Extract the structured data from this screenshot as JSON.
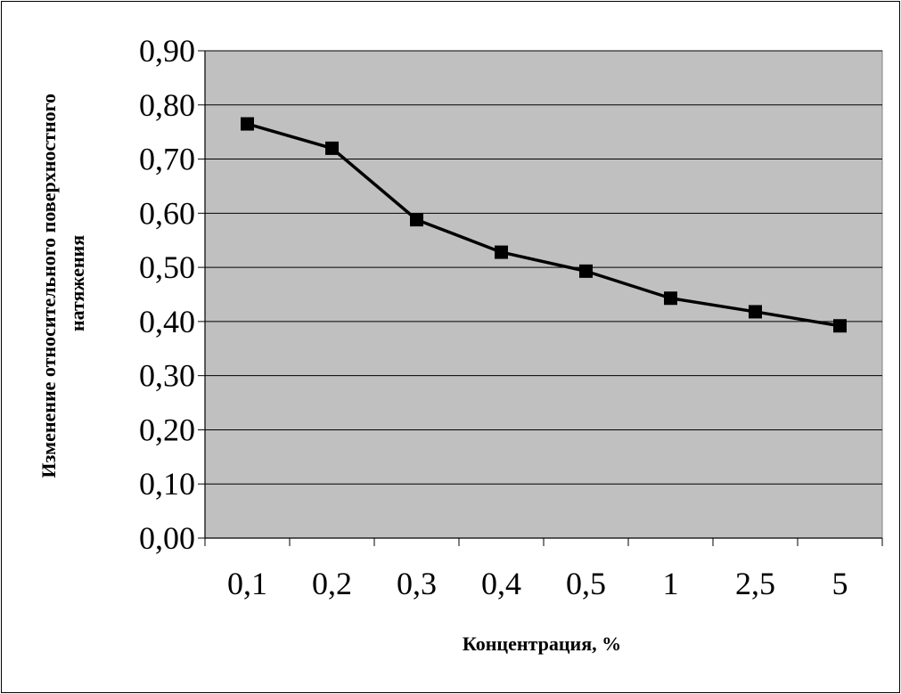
{
  "chart_data": {
    "type": "line",
    "title": "",
    "xlabel": "Концентрация, %",
    "ylabel_lines": [
      "Изменение относительного поверхностного",
      "натяжения"
    ],
    "categories": [
      "0,1",
      "0,2",
      "0,3",
      "0,4",
      "0,5",
      "1",
      "2,5",
      "5"
    ],
    "series": [
      {
        "values": [
          0.765,
          0.72,
          0.588,
          0.528,
          0.493,
          0.443,
          0.418,
          0.392
        ]
      }
    ],
    "ylim": [
      0,
      0.9
    ],
    "yticks": [
      0,
      0.1,
      0.2,
      0.3,
      0.4,
      0.5,
      0.6,
      0.7,
      0.8,
      0.9
    ],
    "ytick_labels": [
      "0,00",
      "0,10",
      "0,20",
      "0,30",
      "0,40",
      "0,50",
      "0,60",
      "0,70",
      "0,80",
      "0,90"
    ],
    "grid": true,
    "legend": "none",
    "colors": {
      "plot_background": "#c0c0c0",
      "line": "#000000",
      "marker": "#000000",
      "grid": "#000000"
    }
  }
}
